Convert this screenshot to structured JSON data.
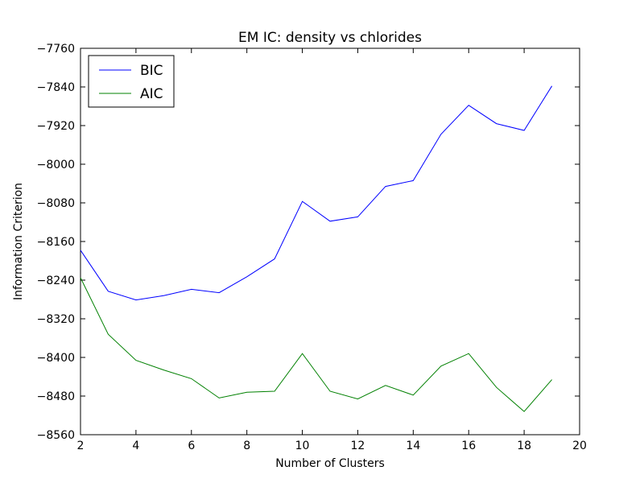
{
  "chart_data": {
    "type": "line",
    "title": "EM IC: density vs chlorides",
    "xlabel": "Number of Clusters",
    "ylabel": "Information Criterion",
    "xlim": [
      2,
      20
    ],
    "ylim": [
      -8560,
      -7760
    ],
    "xticks": [
      2,
      4,
      6,
      8,
      10,
      12,
      14,
      16,
      18,
      20
    ],
    "yticks": [
      -7760,
      -7840,
      -7920,
      -8000,
      -8080,
      -8160,
      -8240,
      -8320,
      -8400,
      -8480,
      -8560
    ],
    "xtick_labels": [
      "2",
      "4",
      "6",
      "8",
      "10",
      "12",
      "14",
      "16",
      "18",
      "20"
    ],
    "ytick_labels": [
      "−7760",
      "−7840",
      "−7920",
      "−8000",
      "−8080",
      "−8160",
      "−8240",
      "−8320",
      "−8400",
      "−8480",
      "−8560"
    ],
    "grid": false,
    "legend_position": "top-left",
    "x": [
      2,
      3,
      4,
      5,
      6,
      7,
      8,
      9,
      10,
      11,
      12,
      13,
      14,
      15,
      16,
      17,
      18,
      19
    ],
    "series": [
      {
        "name": "BIC",
        "color": "#0000ff",
        "values": [
          -8178,
          -8263,
          -8281,
          -8272,
          -8259,
          -8266,
          -8233,
          -8196,
          -8077,
          -8118,
          -8109,
          -8046,
          -8034,
          -7938,
          -7878,
          -7916,
          -7930,
          -7838
        ]
      },
      {
        "name": "AIC",
        "color": "#008000",
        "values": [
          -8235,
          -8352,
          -8406,
          -8426,
          -8444,
          -8484,
          -8472,
          -8470,
          -8392,
          -8470,
          -8486,
          -8458,
          -8478,
          -8418,
          -8392,
          -8462,
          -8512,
          -8446
        ]
      }
    ]
  }
}
